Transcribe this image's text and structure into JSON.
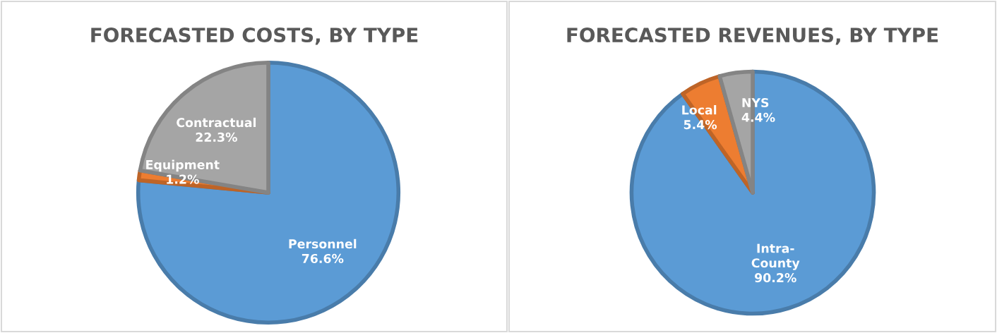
{
  "chart_data": [
    {
      "type": "pie",
      "title": "FORECASTED COSTS, BY TYPE",
      "categories": [
        "Personnel",
        "Equipment",
        "Contractual"
      ],
      "values": [
        76.6,
        1.2,
        22.3
      ],
      "colors": [
        "#5b9bd5",
        "#ed7d31",
        "#a5a5a5"
      ],
      "value_labels": [
        "76.6%",
        "1.2%",
        "22.3%"
      ],
      "legend": false
    },
    {
      "type": "pie",
      "title": "FORECASTED REVENUES, BY TYPE",
      "categories": [
        "Intra-\nCounty",
        "Local",
        "NYS"
      ],
      "values": [
        90.2,
        5.4,
        4.4
      ],
      "colors": [
        "#5b9bd5",
        "#ed7d31",
        "#a5a5a5"
      ],
      "value_labels": [
        "90.2%",
        "5.4%",
        "4.4%"
      ],
      "legend": false
    }
  ]
}
